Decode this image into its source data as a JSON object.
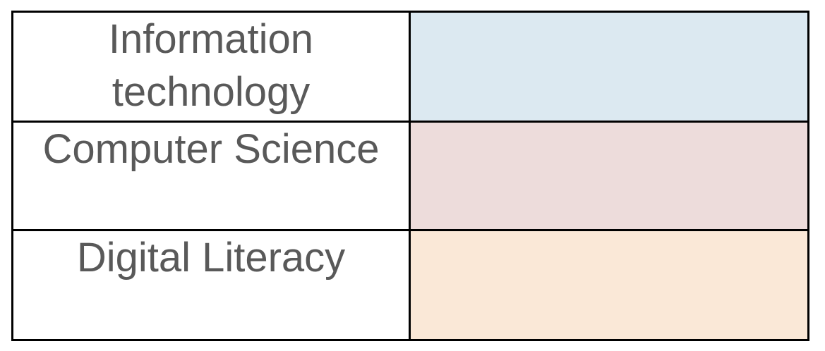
{
  "page": {
    "background_color": "#ffffff"
  },
  "table": {
    "border_color": "#000000",
    "text_color": "#595959",
    "columns": [
      "topic-label",
      "color-swatch"
    ],
    "rows": [
      {
        "label": "Information technology",
        "swatch_color": "#dce9f1",
        "swatch_color_name": "light-blue"
      },
      {
        "label": "Computer Science",
        "swatch_color": "#eddcdb",
        "swatch_color_name": "light-rose"
      },
      {
        "label": "Digital Literacy",
        "swatch_color": "#fae8d7",
        "swatch_color_name": "light-peach"
      }
    ]
  }
}
